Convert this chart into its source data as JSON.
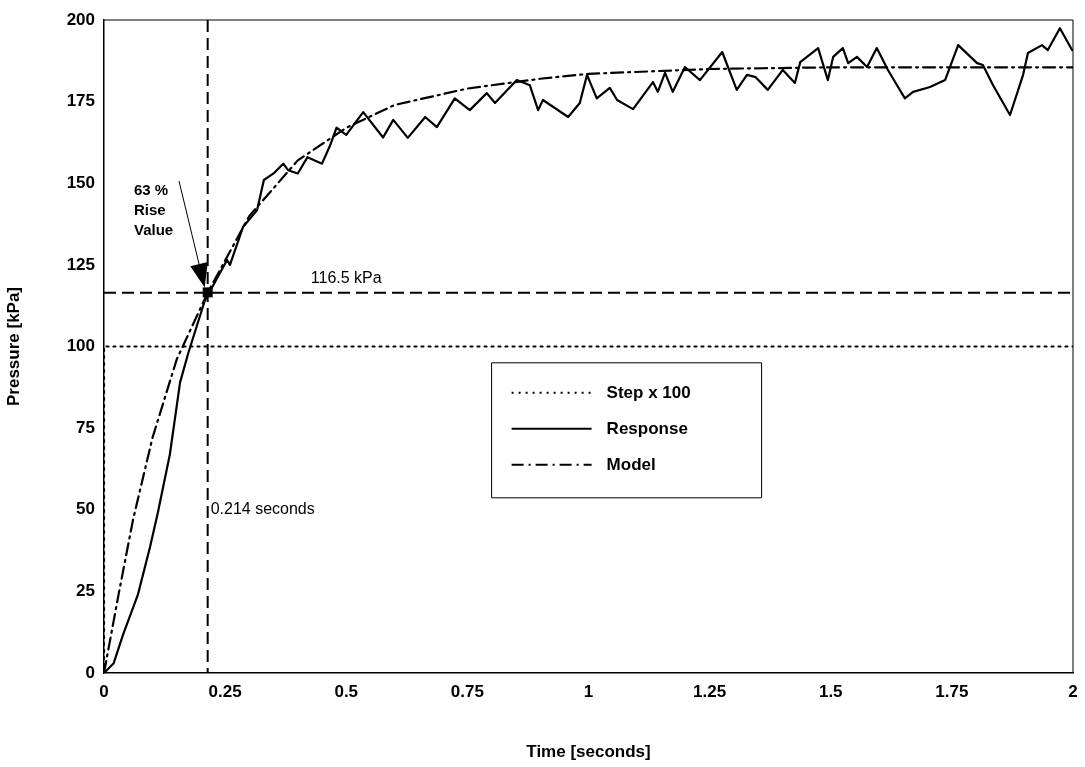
{
  "chart_data": {
    "type": "line",
    "xlabel": "Time [seconds]",
    "ylabel": "Pressure [kPa]",
    "xlim": [
      0,
      2
    ],
    "xticks": [
      0,
      0.25,
      0.5,
      0.75,
      1,
      1.25,
      1.5,
      1.75,
      2
    ],
    "ylim": [
      0,
      200
    ],
    "yticks": [
      0,
      25,
      50,
      75,
      100,
      125,
      150,
      175,
      200
    ],
    "grid": false,
    "legend": "center",
    "marker": "none",
    "series": [
      {
        "name": "Step x 100",
        "color": "#000000",
        "line_style": "dotted",
        "x": [
          0,
          0,
          2
        ],
        "values": [
          0,
          100,
          100
        ]
      },
      {
        "name": "Response",
        "color": "#000000",
        "line_style": "solid",
        "x": [
          0,
          0.02,
          0.039,
          0.07,
          0.095,
          0.111,
          0.136,
          0.157,
          0.174,
          0.208,
          0.23,
          0.254,
          0.26,
          0.287,
          0.316,
          0.33,
          0.35,
          0.37,
          0.38,
          0.4,
          0.42,
          0.45,
          0.467,
          0.48,
          0.5,
          0.535,
          0.576,
          0.597,
          0.627,
          0.663,
          0.687,
          0.724,
          0.755,
          0.79,
          0.807,
          0.852,
          0.879,
          0.896,
          0.906,
          0.958,
          0.982,
          0.997,
          1.017,
          1.044,
          1.059,
          1.092,
          1.133,
          1.143,
          1.158,
          1.174,
          1.199,
          1.23,
          1.276,
          1.306,
          1.327,
          1.345,
          1.37,
          1.401,
          1.426,
          1.437,
          1.474,
          1.494,
          1.505,
          1.525,
          1.536,
          1.554,
          1.575,
          1.595,
          1.618,
          1.653,
          1.67,
          1.705,
          1.736,
          1.763,
          1.802,
          1.814,
          1.835,
          1.87,
          1.897,
          1.907,
          1.936,
          1.948,
          1.973,
          1.998
        ],
        "values": [
          0,
          3,
          11.6,
          24,
          38.6,
          49,
          67,
          89,
          98,
          114,
          120,
          126.5,
          125,
          136.6,
          141.8,
          151,
          153,
          156,
          154,
          153,
          158,
          156,
          161.7,
          167,
          164.8,
          171.8,
          164,
          169.4,
          163.9,
          170.3,
          167.2,
          176,
          172.4,
          177.6,
          174.6,
          181.6,
          180,
          172.4,
          175.5,
          170.3,
          174.6,
          183.2,
          176,
          179.2,
          175.5,
          172.7,
          181,
          178,
          183.8,
          178,
          185.6,
          181.6,
          190.2,
          178.6,
          183.2,
          182.5,
          178.6,
          184.7,
          180.7,
          187.1,
          191.4,
          181.6,
          188.7,
          191.4,
          186.8,
          188.7,
          185.6,
          191.4,
          184.7,
          176,
          178,
          179.5,
          181.6,
          192.3,
          186.8,
          186.2,
          180,
          170.9,
          183.2,
          189.9,
          192.3,
          190.8,
          197.5,
          190.8
        ]
      },
      {
        "name": "Model",
        "color": "#000000",
        "line_style": "dashdot",
        "x": [
          0,
          0.03,
          0.06,
          0.1,
          0.15,
          0.214,
          0.3,
          0.4,
          0.5,
          0.6,
          0.75,
          0.9,
          1,
          1.25,
          1.5,
          2
        ],
        "values": [
          0,
          24,
          47,
          72,
          96,
          116.5,
          140,
          157,
          167,
          174,
          179,
          182,
          183.5,
          185,
          185.5,
          185.5
        ]
      }
    ],
    "ref_lines": [
      {
        "axis": "x",
        "value": 0.214,
        "label": "0.214 seconds",
        "line_style": "dashed"
      },
      {
        "axis": "y",
        "value": 116.5,
        "label": "116.5 kPa",
        "line_style": "dashed"
      }
    ],
    "annotations": [
      "63 %\nRise\nValue"
    ]
  }
}
